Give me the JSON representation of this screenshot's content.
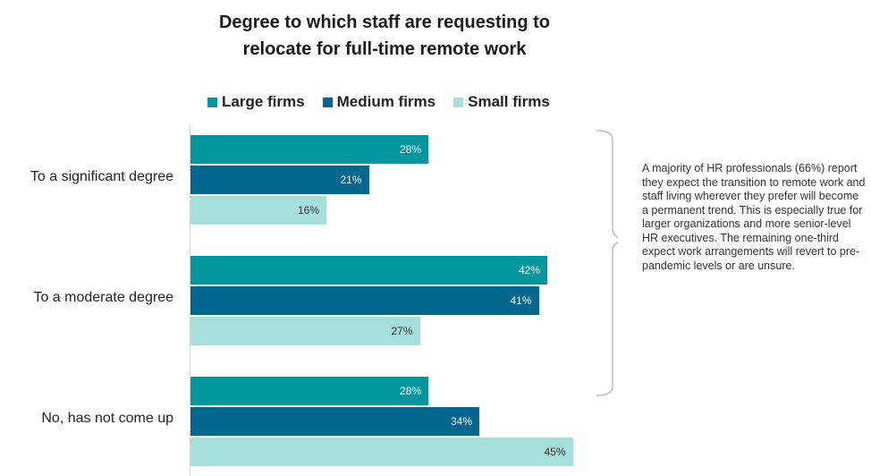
{
  "title_line1": "Degree to which staff are requesting to",
  "title_line2": "relocate for full-time remote work",
  "note": "A majority of HR professionals (66%) report they expect the transition to remote work and staff living wherever they prefer will become a permanent trend. This is especially true for larger organizations and more senior-level HR executives. The remaining one-third expect work arrangements will revert to pre-pandemic levels or are unsure.",
  "chart_data": {
    "type": "bar",
    "orientation": "horizontal",
    "categories": [
      "To a significant degree",
      "To a moderate degree",
      "No, has not come up"
    ],
    "series": [
      {
        "name": "Large firms",
        "color": "#00969e",
        "values": [
          28,
          42,
          28
        ]
      },
      {
        "name": "Medium firms",
        "color": "#00678f",
        "values": [
          21,
          41,
          34
        ]
      },
      {
        "name": "Small firms",
        "color": "#a4dfdc",
        "values": [
          16,
          27,
          45
        ]
      }
    ],
    "value_suffix": "%",
    "xlim": [
      0,
      80
    ],
    "grid": false,
    "legend_position": "top"
  }
}
